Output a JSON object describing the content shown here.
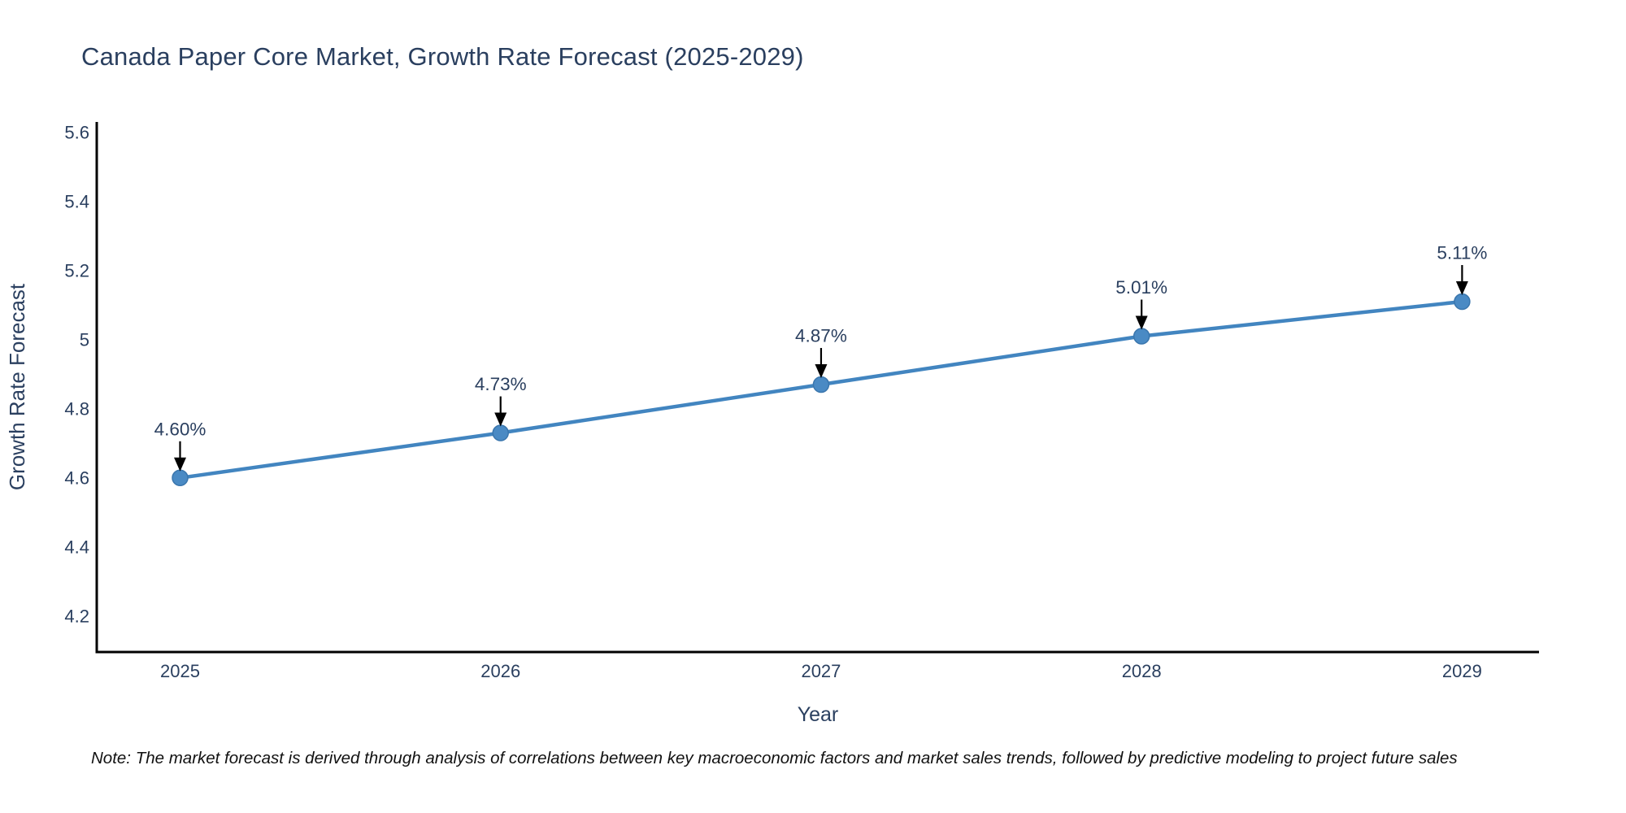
{
  "title": "Canada Paper Core Market, Growth Rate Forecast (2025-2029)",
  "note": "Note: The market forecast is derived through analysis of correlations between key macroeconomic factors and market sales trends, followed by predictive modeling to project future sales",
  "colors": {
    "background": "#ffffff",
    "text": "#2a3f5f",
    "axis_line": "#000000",
    "line": "#4285c0",
    "marker_fill": "#4a8ac4",
    "marker_edge": "#3a76ad",
    "arrow": "#000000",
    "note_text": "#111111"
  },
  "chart_data": {
    "type": "line",
    "title": "Canada Paper Core Market, Growth Rate Forecast (2025-2029)",
    "xlabel": "Year",
    "ylabel": "Growth Rate Forecast",
    "categories": [
      2025,
      2026,
      2027,
      2028,
      2029
    ],
    "xtick_labels": [
      "2025",
      "2026",
      "2027",
      "2028",
      "2029"
    ],
    "values": [
      4.6,
      4.73,
      4.87,
      5.01,
      5.11
    ],
    "labels": [
      "4.60%",
      "4.73%",
      "4.87%",
      "5.01%",
      "5.11%"
    ],
    "yticks": [
      4.2,
      4.4,
      4.6,
      4.8,
      5,
      5.2,
      5.4,
      5.6
    ],
    "ytick_labels": [
      "4.2",
      "4.4",
      "4.6",
      "4.8",
      "5",
      "5.2",
      "5.4",
      "5.6"
    ],
    "ylim": [
      4.096,
      5.63
    ],
    "xlim": [
      2024.74,
      2029.24
    ],
    "grid": false,
    "legend": "none",
    "annotation_style": "value label with downward black arrow to each point"
  }
}
